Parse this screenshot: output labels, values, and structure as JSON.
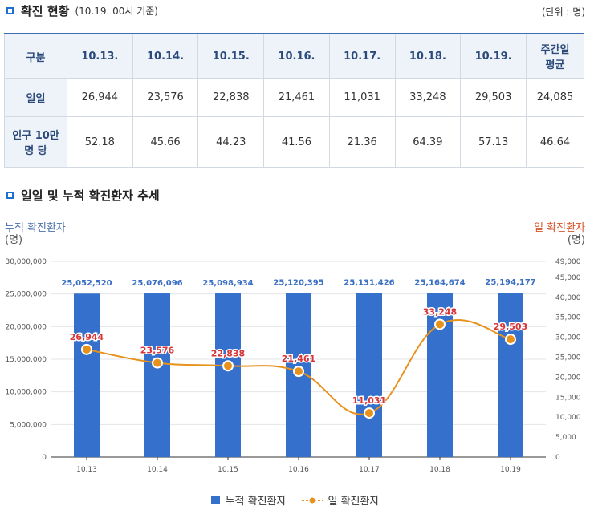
{
  "header": {
    "title": "확진 현황",
    "basis": "(10.19. 00시 기준)",
    "unit": "(단위 : 명)"
  },
  "table": {
    "headers": [
      "구분",
      "10.13.",
      "10.14.",
      "10.15.",
      "10.16.",
      "10.17.",
      "10.18.",
      "10.19.",
      "주간일\n평균"
    ],
    "rows": [
      {
        "label": "일일",
        "values": [
          "26,944",
          "23,576",
          "22,838",
          "21,461",
          "11,031",
          "33,248",
          "29,503",
          "24,085"
        ]
      },
      {
        "label": "인구 10만\n명 당",
        "values": [
          "52.18",
          "45.66",
          "44.23",
          "41.56",
          "21.36",
          "64.39",
          "57.13",
          "46.64"
        ]
      }
    ]
  },
  "chart_section": {
    "title": "일일 및 누적 확진환자 추세"
  },
  "colors": {
    "bar": "#3571cc",
    "line": "#e8921e",
    "bar_label": "#3a6fc4",
    "line_label": "#d8353a",
    "accent": "#1f6fd0"
  },
  "chart_data": {
    "type": "bar",
    "title": "일일 및 누적 확진환자 추세",
    "categories": [
      "10.13",
      "10.14",
      "10.15",
      "10.16",
      "10.17",
      "10.18",
      "10.19"
    ],
    "series": [
      {
        "name": "누적 확진환자",
        "type": "bar",
        "axis": "left",
        "values": [
          25052520,
          25076096,
          25098934,
          25120395,
          25131426,
          25164674,
          25194177
        ],
        "labels": [
          "25,052,520",
          "25,076,096",
          "25,098,934",
          "25,120,395",
          "25,131,426",
          "25,164,674",
          "25,194,177"
        ]
      },
      {
        "name": "일 확진환자",
        "type": "line",
        "axis": "right",
        "values": [
          26944,
          23576,
          22838,
          21461,
          11031,
          33248,
          29503
        ],
        "labels": [
          "26,944",
          "23,576",
          "22,838",
          "21,461",
          "11,031",
          "33,248",
          "29,503"
        ]
      }
    ],
    "y_left": {
      "title": "누적 확진환자",
      "unit": "(명)",
      "ylim": [
        0,
        30000000
      ],
      "ticks": [
        0,
        5000000,
        10000000,
        15000000,
        20000000,
        25000000,
        30000000
      ],
      "tick_labels": [
        "0",
        "5,000,000",
        "10,000,000",
        "15,000,000",
        "20,000,000",
        "25,000,000",
        "30,000,000"
      ]
    },
    "y_right": {
      "title": "일 확진환자",
      "unit": "(명)",
      "ylim": [
        0,
        49000
      ],
      "ticks": [
        0,
        5000,
        10000,
        15000,
        20000,
        25000,
        30000,
        35000,
        40000,
        45000,
        49000
      ],
      "tick_labels": [
        "0",
        "5,000",
        "10,000",
        "15,000",
        "20,000",
        "25,000",
        "30,000",
        "35,000",
        "40,000",
        "45,000",
        "49,000"
      ]
    },
    "legend": [
      "누적 확진환자",
      "일 확진환자"
    ],
    "legend_position": "bottom",
    "grid": true
  }
}
